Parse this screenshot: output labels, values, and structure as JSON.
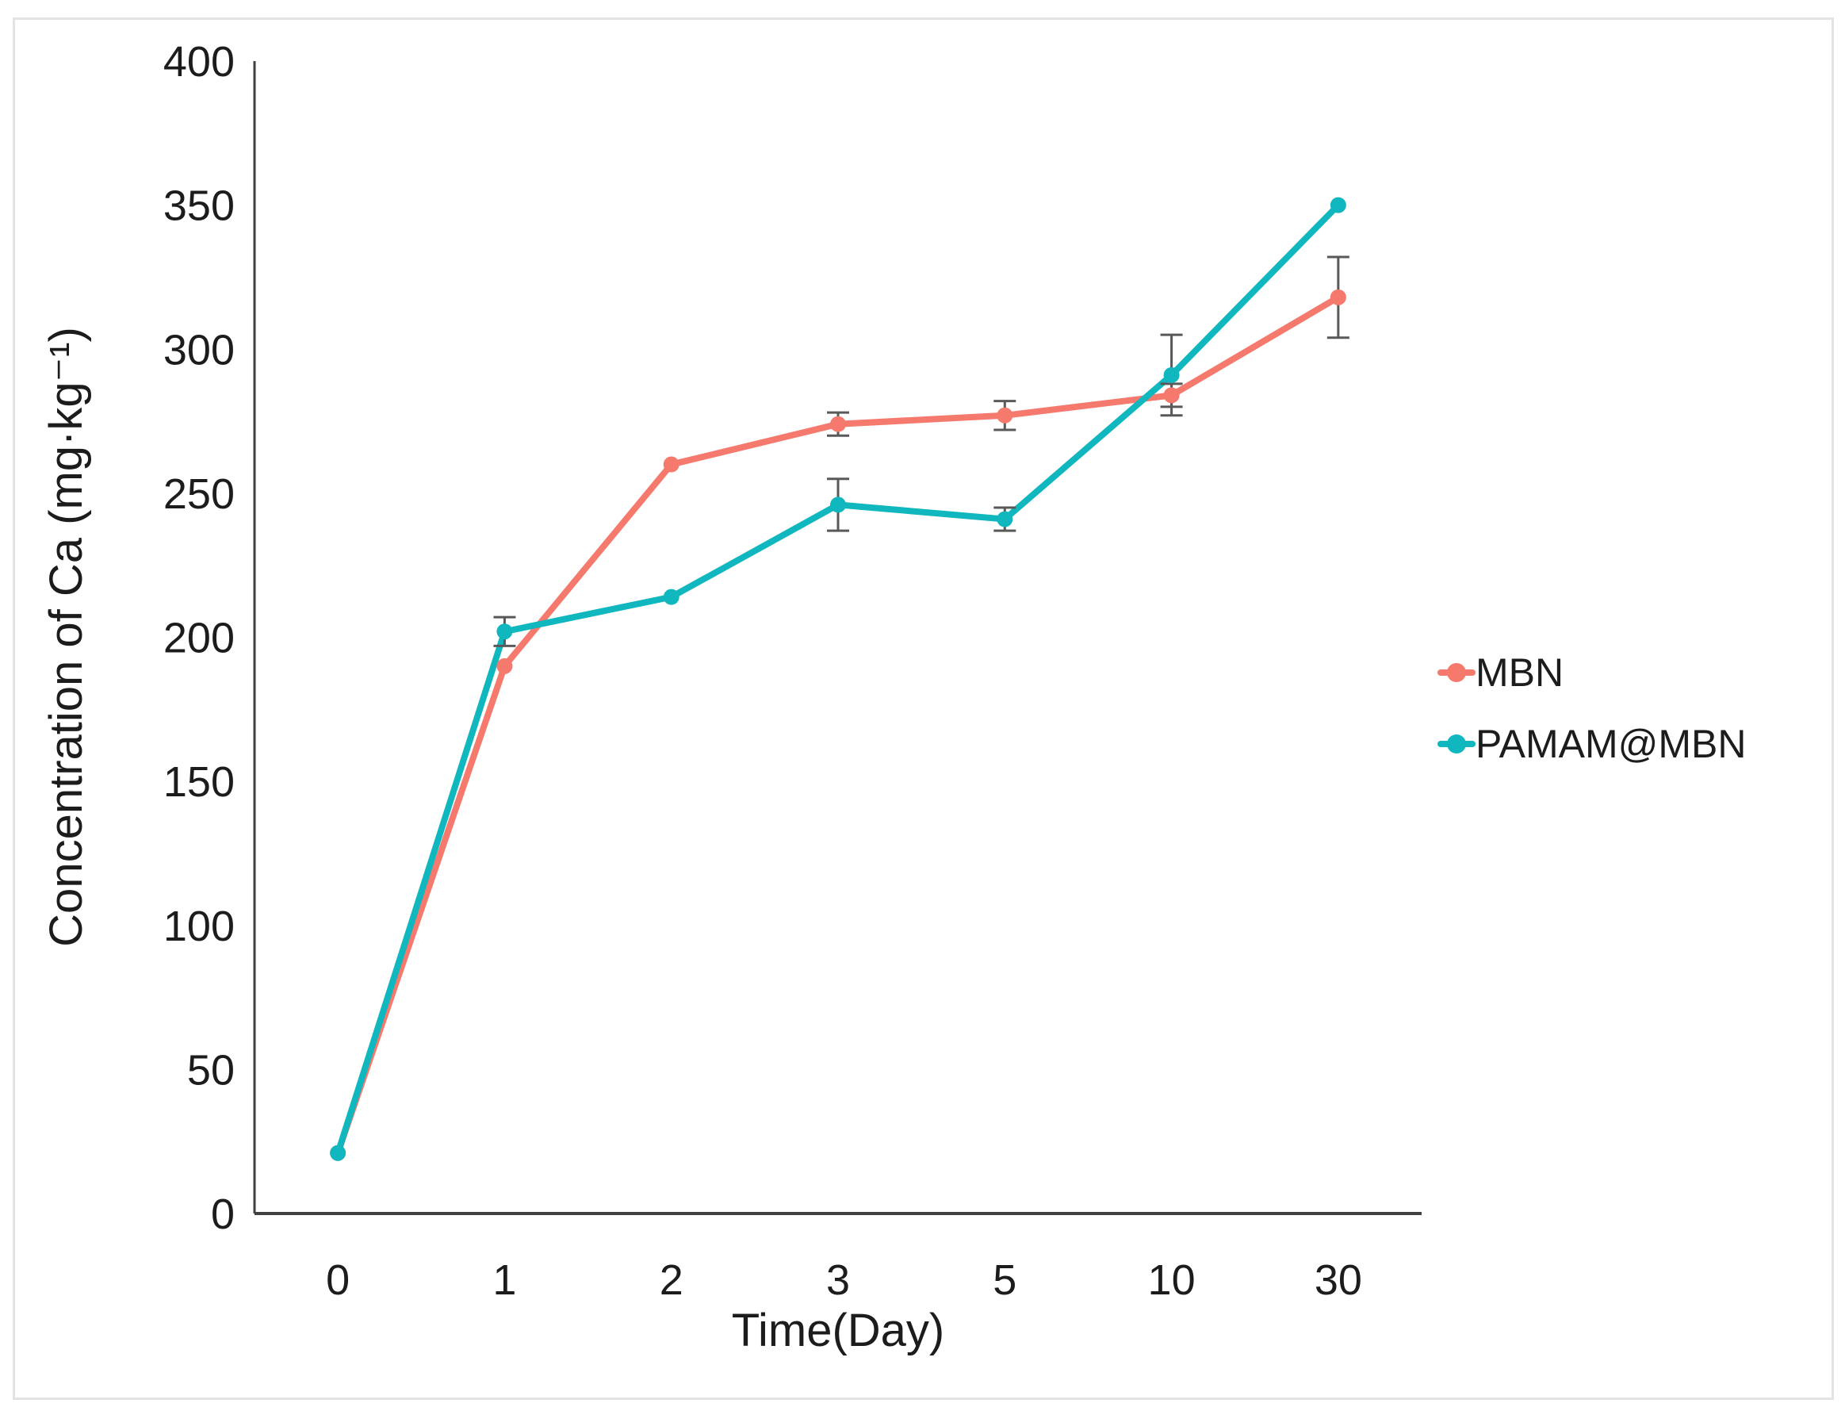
{
  "figure": {
    "background": "#ffffff",
    "border_color": "#e3e3e3"
  },
  "chart_data": {
    "type": "line",
    "title": "",
    "xlabel": "Time(Day)",
    "ylabel": "Concentration of Ca (mg·kg⁻¹)",
    "categories": [
      "0",
      "1",
      "2",
      "3",
      "5",
      "10",
      "30"
    ],
    "x_type": "categorical",
    "ylim": [
      0,
      400
    ],
    "yticks": [
      0,
      50,
      100,
      150,
      200,
      250,
      300,
      350,
      400
    ],
    "grid": false,
    "legend_position": "center-right",
    "axis_color": "#404040",
    "error_bar_color": "#595959",
    "series": [
      {
        "name": "MBN",
        "color": "#F5796C",
        "values": [
          21,
          190,
          260,
          274,
          277,
          284,
          318
        ],
        "errors": [
          0,
          0,
          0,
          4,
          5,
          4,
          14
        ]
      },
      {
        "name": "PAMAM@MBN",
        "color": "#10B7BE",
        "values": [
          21,
          202,
          214,
          246,
          241,
          291,
          350
        ],
        "errors": [
          0,
          5,
          0,
          9,
          4,
          14,
          0
        ]
      }
    ]
  }
}
